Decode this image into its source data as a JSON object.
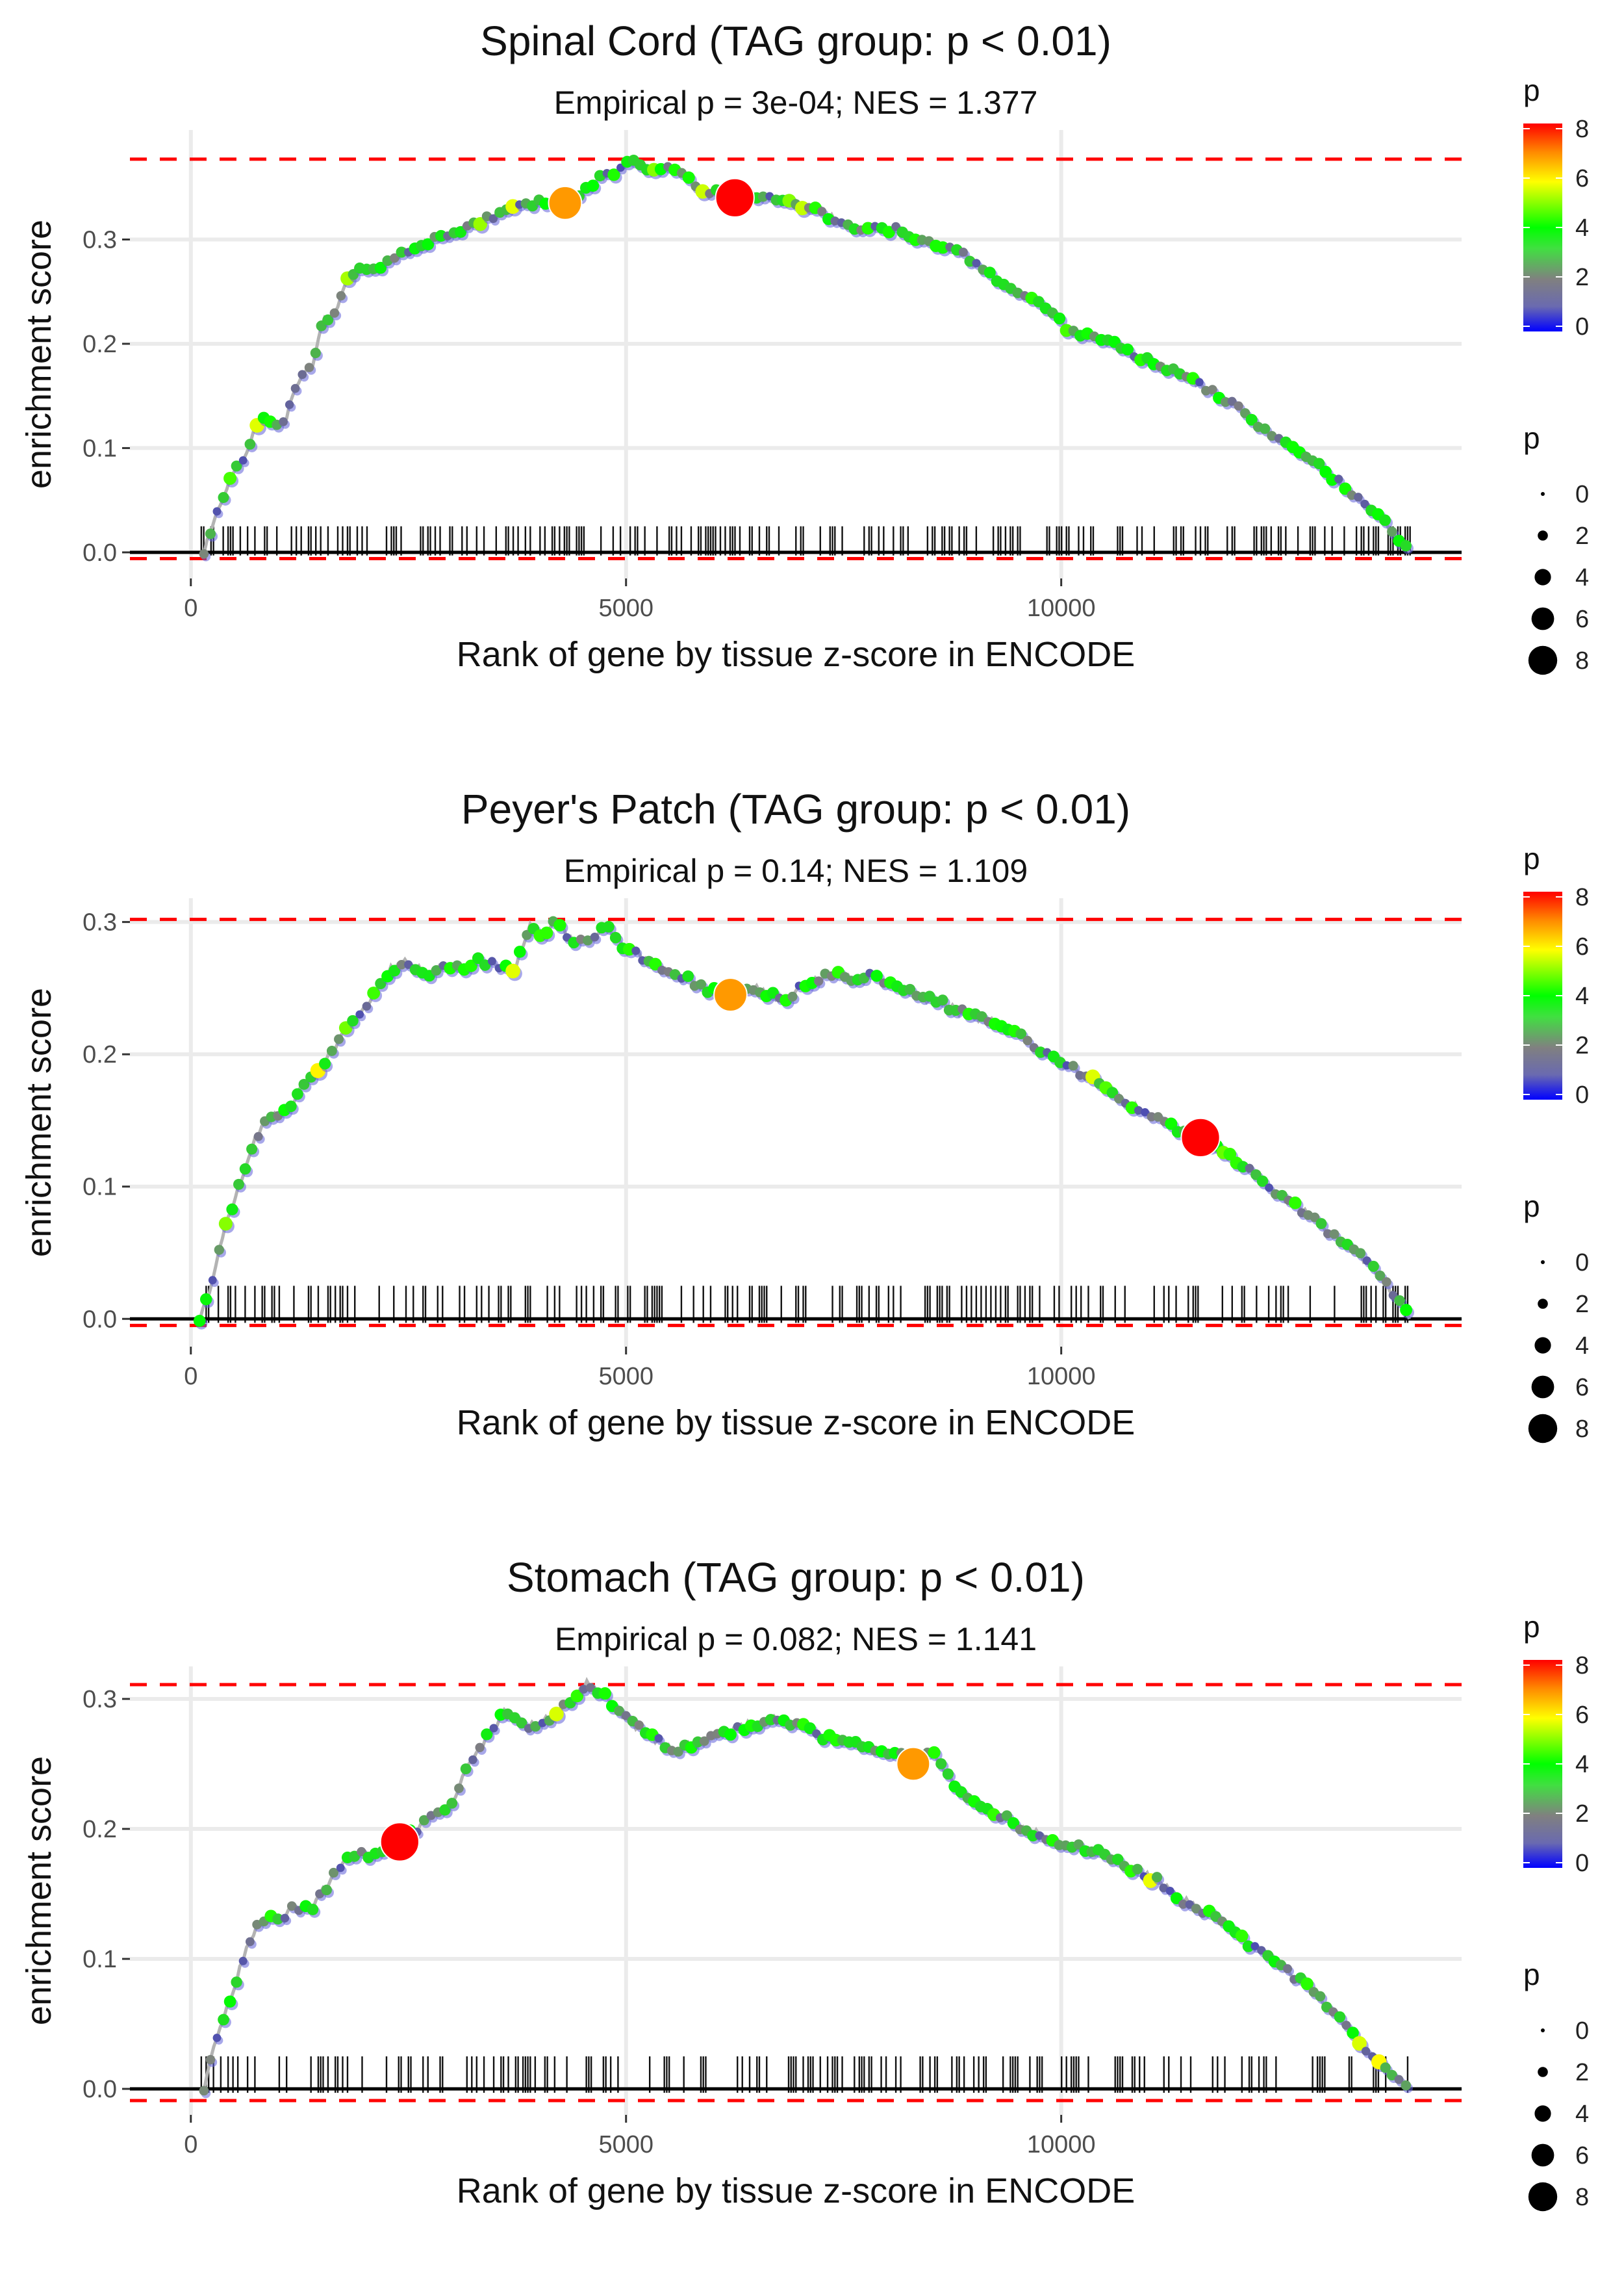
{
  "chart_data": [
    {
      "type": "line",
      "title": "Spinal Cord (TAG group: p < 0.01)",
      "subtitle": "Empirical p = 3e-04; NES = 1.377",
      "xlabel": "Rank of gene by tissue z-score in ENCODE",
      "ylabel": "enrichment score",
      "xlim": [
        -700,
        14600
      ],
      "ylim": [
        -0.025,
        0.405
      ],
      "xticks": [
        0,
        5000,
        10000
      ],
      "yticks": [
        0.0,
        0.1,
        0.2,
        0.3
      ],
      "ytick_labels": [
        "0.0",
        "0.1",
        "0.2",
        "0.3"
      ],
      "max_es": 0.377,
      "min_es": -0.006,
      "curve": [
        [
          150,
          0.0
        ],
        [
          300,
          0.04
        ],
        [
          450,
          0.07
        ],
        [
          600,
          0.09
        ],
        [
          800,
          0.13
        ],
        [
          950,
          0.12
        ],
        [
          1100,
          0.13
        ],
        [
          1200,
          0.16
        ],
        [
          1400,
          0.18
        ],
        [
          1500,
          0.22
        ],
        [
          1650,
          0.23
        ],
        [
          1800,
          0.26
        ],
        [
          1900,
          0.272
        ],
        [
          2100,
          0.27
        ],
        [
          2300,
          0.28
        ],
        [
          2500,
          0.29
        ],
        [
          2800,
          0.3
        ],
        [
          3100,
          0.31
        ],
        [
          3400,
          0.32
        ],
        [
          3700,
          0.33
        ],
        [
          4000,
          0.335
        ],
        [
          4300,
          0.335
        ],
        [
          4500,
          0.345
        ],
        [
          4700,
          0.36
        ],
        [
          4900,
          0.365
        ],
        [
          5050,
          0.377
        ],
        [
          5200,
          0.37
        ],
        [
          5400,
          0.365
        ],
        [
          5600,
          0.37
        ],
        [
          5800,
          0.35
        ],
        [
          6000,
          0.345
        ],
        [
          6300,
          0.345
        ],
        [
          6500,
          0.34
        ],
        [
          6800,
          0.34
        ],
        [
          7100,
          0.33
        ],
        [
          7400,
          0.32
        ],
        [
          7700,
          0.31
        ],
        [
          8100,
          0.31
        ],
        [
          8400,
          0.3
        ],
        [
          8800,
          0.29
        ],
        [
          9100,
          0.27
        ],
        [
          9500,
          0.25
        ],
        [
          9900,
          0.23
        ],
        [
          10100,
          0.21
        ],
        [
          10500,
          0.205
        ],
        [
          10800,
          0.19
        ],
        [
          11100,
          0.18
        ],
        [
          11400,
          0.17
        ],
        [
          11700,
          0.155
        ],
        [
          12000,
          0.14
        ],
        [
          12300,
          0.12
        ],
        [
          12700,
          0.1
        ],
        [
          13000,
          0.08
        ],
        [
          13300,
          0.06
        ],
        [
          13600,
          0.04
        ],
        [
          13800,
          0.02
        ],
        [
          14000,
          0.0
        ]
      ],
      "highlights": [
        {
          "x": 4300,
          "y": 0.335,
          "p": 6.8
        },
        {
          "x": 6250,
          "y": 0.34,
          "p": 8.2
        }
      ],
      "rug_density": 0.42,
      "rug_seed": 11
    },
    {
      "type": "line",
      "title": "Peyer's Patch (TAG group: p < 0.01)",
      "subtitle": "Empirical p = 0.14; NES = 1.109",
      "xlabel": "Rank of gene by tissue z-score in ENCODE",
      "ylabel": "enrichment score",
      "xlim": [
        -700,
        14600
      ],
      "ylim": [
        -0.021,
        0.318
      ],
      "xticks": [
        0,
        5000,
        10000
      ],
      "yticks": [
        0.0,
        0.1,
        0.2,
        0.3
      ],
      "ytick_labels": [
        "0.0",
        "0.1",
        "0.2",
        "0.3"
      ],
      "max_es": 0.302,
      "min_es": -0.005,
      "curve": [
        [
          100,
          0.0
        ],
        [
          250,
          0.03
        ],
        [
          400,
          0.07
        ],
        [
          550,
          0.1
        ],
        [
          700,
          0.13
        ],
        [
          850,
          0.15
        ],
        [
          1000,
          0.155
        ],
        [
          1150,
          0.16
        ],
        [
          1300,
          0.18
        ],
        [
          1500,
          0.19
        ],
        [
          1700,
          0.21
        ],
        [
          1900,
          0.23
        ],
        [
          2100,
          0.245
        ],
        [
          2300,
          0.265
        ],
        [
          2500,
          0.27
        ],
        [
          2700,
          0.26
        ],
        [
          2900,
          0.27
        ],
        [
          3100,
          0.265
        ],
        [
          3300,
          0.27
        ],
        [
          3500,
          0.27
        ],
        [
          3700,
          0.26
        ],
        [
          3900,
          0.3
        ],
        [
          4050,
          0.29
        ],
        [
          4200,
          0.3
        ],
        [
          4400,
          0.285
        ],
        [
          4600,
          0.29
        ],
        [
          4800,
          0.295
        ],
        [
          5000,
          0.28
        ],
        [
          5300,
          0.27
        ],
        [
          5600,
          0.26
        ],
        [
          5900,
          0.25
        ],
        [
          6200,
          0.245
        ],
        [
          6500,
          0.25
        ],
        [
          6800,
          0.24
        ],
        [
          7100,
          0.255
        ],
        [
          7400,
          0.26
        ],
        [
          7700,
          0.255
        ],
        [
          7800,
          0.26
        ],
        [
          8000,
          0.255
        ],
        [
          8300,
          0.245
        ],
        [
          8600,
          0.24
        ],
        [
          8900,
          0.23
        ],
        [
          9200,
          0.225
        ],
        [
          9500,
          0.215
        ],
        [
          9800,
          0.2
        ],
        [
          10100,
          0.19
        ],
        [
          10400,
          0.18
        ],
        [
          10700,
          0.165
        ],
        [
          11000,
          0.155
        ],
        [
          11300,
          0.145
        ],
        [
          11600,
          0.137
        ],
        [
          11900,
          0.125
        ],
        [
          12200,
          0.11
        ],
        [
          12500,
          0.095
        ],
        [
          12800,
          0.08
        ],
        [
          13100,
          0.065
        ],
        [
          13400,
          0.05
        ],
        [
          13700,
          0.03
        ],
        [
          14000,
          0.0
        ]
      ],
      "highlights": [
        {
          "x": 6200,
          "y": 0.245,
          "p": 6.8
        },
        {
          "x": 11600,
          "y": 0.137,
          "p": 8.2
        }
      ],
      "rug_density": 0.36,
      "rug_seed": 29
    },
    {
      "type": "line",
      "title": "Stomach (TAG group: p < 0.01)",
      "subtitle": "Empirical p = 0.082; NES = 1.141",
      "xlabel": "Rank of gene by tissue z-score in ENCODE",
      "ylabel": "enrichment score",
      "xlim": [
        -700,
        14600
      ],
      "ylim": [
        -0.02,
        0.325
      ],
      "xticks": [
        0,
        5000,
        10000
      ],
      "yticks": [
        0.0,
        0.1,
        0.2,
        0.3
      ],
      "ytick_labels": [
        "0.0",
        "0.1",
        "0.2",
        "0.3"
      ],
      "max_es": 0.311,
      "min_es": -0.009,
      "curve": [
        [
          150,
          0.0
        ],
        [
          300,
          0.04
        ],
        [
          450,
          0.07
        ],
        [
          600,
          0.1
        ],
        [
          800,
          0.13
        ],
        [
          1000,
          0.13
        ],
        [
          1200,
          0.14
        ],
        [
          1400,
          0.14
        ],
        [
          1600,
          0.16
        ],
        [
          1800,
          0.18
        ],
        [
          2000,
          0.18
        ],
        [
          2200,
          0.18
        ],
        [
          2400,
          0.19
        ],
        [
          2600,
          0.2
        ],
        [
          2800,
          0.21
        ],
        [
          3000,
          0.22
        ],
        [
          3200,
          0.25
        ],
        [
          3400,
          0.27
        ],
        [
          3600,
          0.29
        ],
        [
          3800,
          0.28
        ],
        [
          4000,
          0.28
        ],
        [
          4200,
          0.29
        ],
        [
          4400,
          0.3
        ],
        [
          4550,
          0.311
        ],
        [
          4800,
          0.3
        ],
        [
          5000,
          0.285
        ],
        [
          5300,
          0.27
        ],
        [
          5600,
          0.26
        ],
        [
          5900,
          0.27
        ],
        [
          6200,
          0.275
        ],
        [
          6400,
          0.28
        ],
        [
          6700,
          0.285
        ],
        [
          7000,
          0.28
        ],
        [
          7300,
          0.27
        ],
        [
          7600,
          0.265
        ],
        [
          7900,
          0.26
        ],
        [
          8200,
          0.255
        ],
        [
          8500,
          0.26
        ],
        [
          8700,
          0.24
        ],
        [
          9000,
          0.22
        ],
        [
          9300,
          0.21
        ],
        [
          9600,
          0.2
        ],
        [
          9900,
          0.19
        ],
        [
          10200,
          0.185
        ],
        [
          10500,
          0.18
        ],
        [
          10800,
          0.17
        ],
        [
          11100,
          0.16
        ],
        [
          11400,
          0.145
        ],
        [
          11700,
          0.135
        ],
        [
          12000,
          0.12
        ],
        [
          12300,
          0.105
        ],
        [
          12600,
          0.09
        ],
        [
          12900,
          0.075
        ],
        [
          13200,
          0.055
        ],
        [
          13500,
          0.03
        ],
        [
          13800,
          0.01
        ],
        [
          14000,
          0.0
        ]
      ],
      "highlights": [
        {
          "x": 2400,
          "y": 0.19,
          "p": 8.2
        },
        {
          "x": 8300,
          "y": 0.25,
          "p": 6.8
        }
      ],
      "rug_density": 0.34,
      "rug_seed": 53
    }
  ],
  "legends": [
    {
      "color_title": "p",
      "color_ticks": [
        "8",
        "6",
        "4",
        "2",
        "0"
      ],
      "size_title": "p",
      "size_labels": [
        "0",
        "2",
        "4",
        "6",
        "8"
      ]
    },
    {
      "color_title": "p",
      "color_ticks": [
        "8",
        "6",
        "4",
        "2",
        "0"
      ],
      "size_title": "p",
      "size_labels": [
        "0",
        "2",
        "4",
        "6",
        "8"
      ]
    },
    {
      "color_title": "p",
      "color_ticks": [
        "8",
        "6",
        "4",
        "2",
        "0"
      ],
      "size_title": "p",
      "size_labels": [
        "0",
        "2",
        "4",
        "6",
        "8"
      ]
    }
  ],
  "colors": {
    "gridline": "#ebebeb",
    "curve": "#b3b3b3",
    "threshold": "#ff0000",
    "axis_line": "#000000",
    "scale_low": "#0000ff",
    "scale_mid_low": "#808080",
    "scale_mid": "#00ff00",
    "scale_mid_high": "#ffff00",
    "scale_high": "#ff0000"
  }
}
